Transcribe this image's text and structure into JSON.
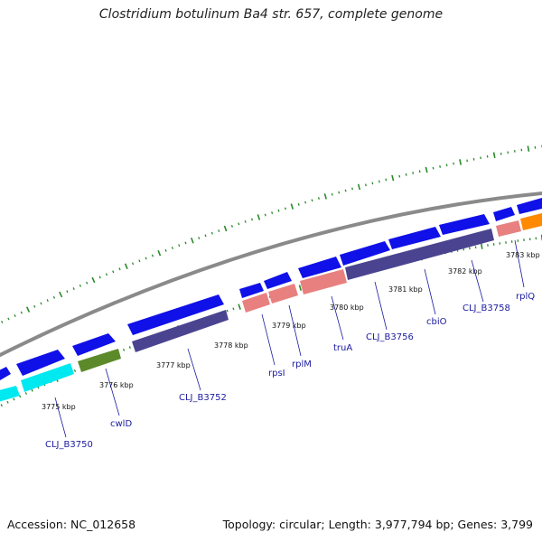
{
  "title": "Clostridium botulinum Ba4 str. 657, complete genome",
  "accession": "Accession: NC_012658",
  "topology": "Topology: circular; Length: 3,977,794 bp; Genes: 3,799",
  "colors": {
    "backbone": "#8a8a8a",
    "tick": "#2b8a2b",
    "cds": "#1010e8",
    "gene_purple": "#4a4490",
    "gene_cyan": "#00e8f0",
    "gene_olive": "#5c8a2a",
    "gene_salmon": "#e88080",
    "gene_orange": "#ff8a00",
    "label": "#1a1aa0"
  },
  "scale_labels": [
    "3775 kbp",
    "3776 kbp",
    "3777 kbp",
    "3778 kbp",
    "3779 kbp",
    "3780 kbp",
    "3781 kbp",
    "3782 kbp",
    "3783 kbp"
  ],
  "gene_labels": [
    "CLJ_B3750",
    "cwlD",
    "CLJ_B3752",
    "rpsI",
    "rplM",
    "truA",
    "CLJ_B3756",
    "cbiO",
    "CLJ_B3758",
    "rplQ"
  ]
}
